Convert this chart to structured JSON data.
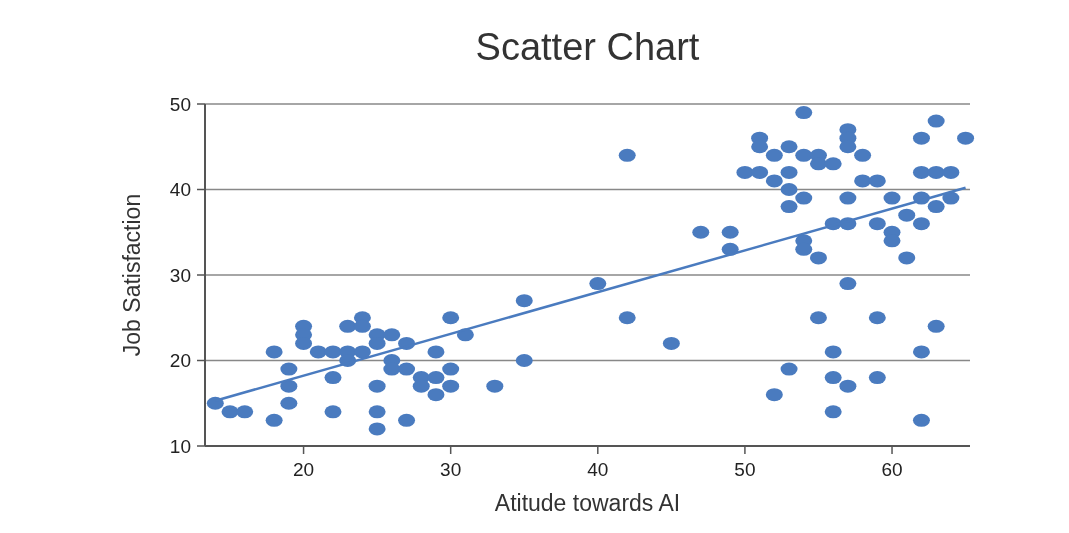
{
  "chart_data": {
    "type": "scatter",
    "title": "Scatter Chart",
    "xlabel": "Atitude towards AI",
    "ylabel": "Job Satisfaction",
    "xlim": [
      13.3,
      65.3
    ],
    "xticks": [
      20,
      30,
      40,
      50,
      60
    ],
    "ylim": [
      10,
      50
    ],
    "yticks": [
      10,
      20,
      30,
      40,
      50
    ],
    "grid": "y",
    "series": [
      {
        "color": "#4a7bbf",
        "marker": "circle",
        "x": [
          14,
          15,
          16,
          18,
          18,
          19,
          19,
          19,
          20,
          20,
          20,
          21,
          22,
          22,
          22,
          23,
          23,
          23,
          24,
          24,
          24,
          25,
          25,
          25,
          25,
          25,
          26,
          26,
          26,
          27,
          27,
          27,
          28,
          28,
          29,
          29,
          29,
          30,
          30,
          30,
          31,
          33,
          35,
          35,
          40,
          42,
          42,
          45,
          47,
          49,
          49,
          50,
          51,
          51,
          51,
          52,
          52,
          52,
          53,
          53,
          53,
          53,
          53,
          54,
          54,
          54,
          54,
          54,
          55,
          55,
          55,
          55,
          56,
          56,
          56,
          56,
          56,
          57,
          57,
          57,
          57,
          57,
          57,
          57,
          58,
          58,
          59,
          59,
          59,
          59,
          60,
          60,
          60,
          61,
          61,
          62,
          62,
          62,
          62,
          62,
          62,
          63,
          63,
          63,
          63,
          64,
          64,
          65
        ],
        "values": [
          15,
          14,
          14,
          21,
          13,
          19,
          17,
          15,
          24,
          23,
          22,
          21,
          21,
          18,
          14,
          24,
          21,
          20,
          25,
          24,
          21,
          23,
          22,
          17,
          14,
          12,
          23,
          20,
          19,
          22,
          19,
          13,
          18,
          17,
          21,
          18,
          16,
          25,
          19,
          17,
          23,
          17,
          27,
          20,
          29,
          44,
          25,
          22,
          35,
          35,
          33,
          42,
          46,
          45,
          42,
          44,
          41,
          16,
          45,
          42,
          40,
          38,
          19,
          49,
          44,
          39,
          34,
          33,
          44,
          43,
          32,
          25,
          43,
          36,
          21,
          18,
          14,
          47,
          46,
          45,
          39,
          36,
          29,
          17,
          44,
          41,
          41,
          36,
          25,
          18,
          39,
          35,
          34,
          37,
          32,
          46,
          42,
          39,
          36,
          21,
          13,
          48,
          42,
          38,
          24,
          42,
          39,
          46
        ]
      },
      {
        "type": "line",
        "color": "#4a7bbf",
        "marker": "none",
        "line_style": "solid",
        "x": [
          14,
          65
        ],
        "values": [
          15.3,
          40.2
        ]
      }
    ]
  }
}
